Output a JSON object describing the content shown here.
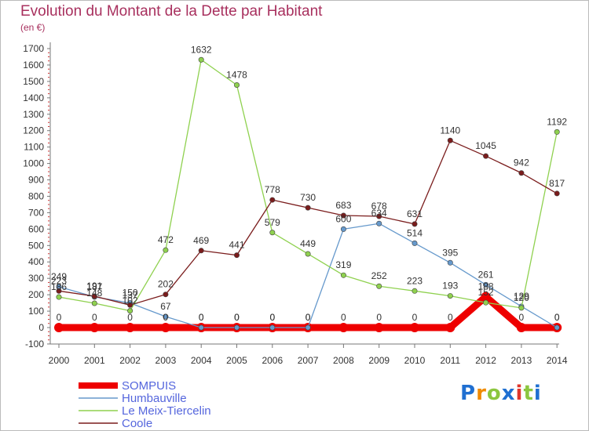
{
  "header": {
    "title": "Evolution du Montant de la Dette par Habitant",
    "subtitle": "(en €)"
  },
  "logo": {
    "text": "Proxiti",
    "colors": [
      "#1f6fd1",
      "#f08a00",
      "#8cc63f",
      "#1f6fd1",
      "#e0352b",
      "#8cc63f",
      "#1f6fd1"
    ]
  },
  "chart_data": {
    "type": "line",
    "title": "Evolution du Montant de la Dette par Habitant",
    "ylabel": "(en €)",
    "xlabel": "",
    "x": [
      "2000",
      "2001",
      "2002",
      "2003",
      "2004",
      "2005",
      "2006",
      "2007",
      "2008",
      "2009",
      "2010",
      "2011",
      "2012",
      "2013",
      "2014"
    ],
    "ylim": [
      -100,
      1700
    ],
    "yticks": [
      -100,
      0,
      100,
      200,
      300,
      400,
      500,
      600,
      700,
      800,
      900,
      1000,
      1100,
      1200,
      1300,
      1400,
      1500,
      1600,
      1700
    ],
    "grid": false,
    "legend_position": "bottom-left",
    "series": [
      {
        "name": "SOMPUIS",
        "color": "#ee0000",
        "thick": true,
        "values": [
          0,
          0,
          0,
          0,
          0,
          0,
          0,
          0,
          0,
          0,
          0,
          0,
          188,
          0,
          0
        ],
        "labels": [
          "0",
          "0",
          "0",
          "0",
          "0",
          "0",
          "0",
          "0",
          "0",
          "0",
          "0",
          "0",
          "188",
          "0",
          "0"
        ]
      },
      {
        "name": "Humbauville",
        "color": "#6699cc",
        "thick": false,
        "values": [
          249,
          187,
          150,
          67,
          0,
          0,
          0,
          0,
          600,
          634,
          514,
          395,
          261,
          129,
          0
        ],
        "labels": [
          "249",
          "187",
          "150",
          "67",
          "0",
          "0",
          "0",
          "0",
          "600",
          "634",
          "514",
          "395",
          "261",
          "129",
          "0"
        ]
      },
      {
        "name": "Le Meix-Tiercelin",
        "color": "#8fd14f",
        "thick": false,
        "values": [
          186,
          148,
          102,
          472,
          1632,
          1478,
          579,
          449,
          319,
          252,
          223,
          193,
          152,
          120,
          1192
        ],
        "labels": [
          "186",
          "148",
          "102",
          "472",
          "1632",
          "1478",
          "579",
          "449",
          "319",
          "252",
          "223",
          "193",
          "152",
          "120",
          "1192"
        ]
      },
      {
        "name": "Coole",
        "color": "#7a1c1c",
        "thick": false,
        "values": [
          223,
          191,
          137,
          202,
          469,
          441,
          778,
          730,
          683,
          678,
          631,
          1140,
          1045,
          942,
          817
        ],
        "labels": [
          "223",
          "191",
          "137",
          "202",
          "469",
          "441",
          "778",
          "730",
          "683",
          "678",
          "631",
          "1140",
          "1045",
          "942",
          "817"
        ]
      }
    ]
  }
}
